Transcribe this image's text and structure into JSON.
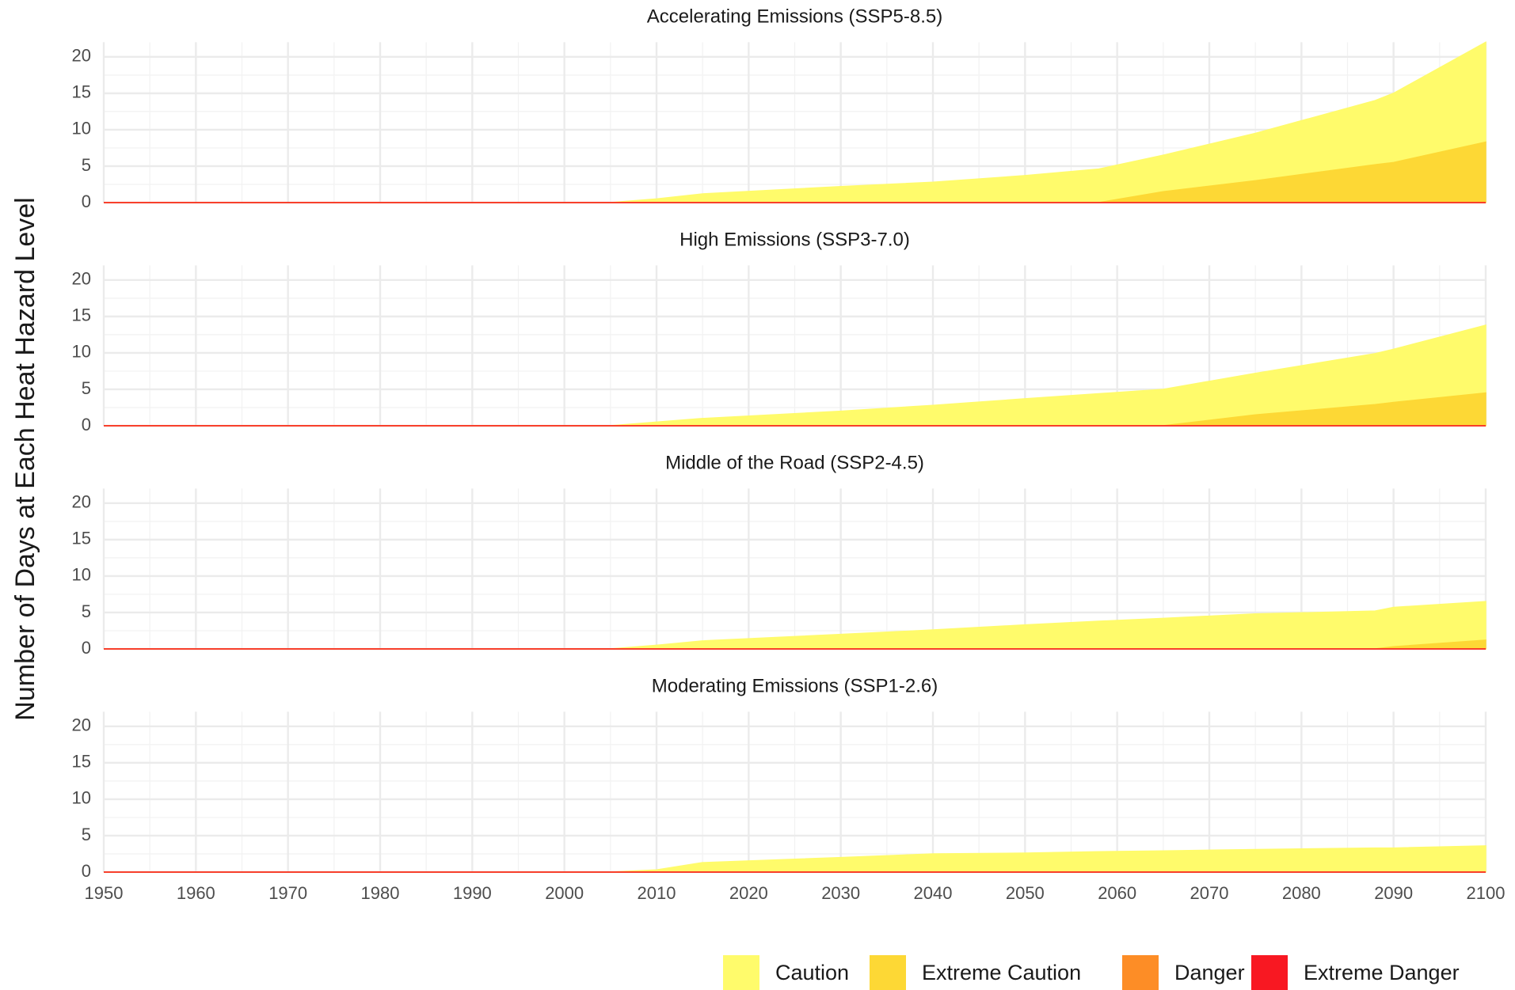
{
  "y_label": "Number of Days at Each Heat Hazard Level",
  "chart_data": [
    {
      "type": "area",
      "title": "Accelerating Emissions (SSP5-8.5)",
      "x": [
        1950,
        2005,
        2010,
        2015,
        2030,
        2040,
        2050,
        2058,
        2065,
        2075,
        2088,
        2090,
        2100
      ],
      "series": [
        {
          "name": "Caution",
          "color": "#fffb6b",
          "values": [
            0,
            0,
            0.5,
            1.2,
            2.2,
            2.8,
            3.7,
            4.6,
            5.0,
            6.5,
            8.8,
            9.5,
            13.7
          ]
        },
        {
          "name": "Extreme Caution",
          "color": "#fdd835",
          "values": [
            0,
            0,
            0,
            0,
            0,
            0,
            0,
            0,
            1.5,
            3.0,
            5.2,
            5.5,
            8.3
          ]
        },
        {
          "name": "Danger",
          "color": "#fd8d26",
          "values": [
            0,
            0,
            0,
            0,
            0,
            0,
            0,
            0,
            0,
            0,
            0,
            0,
            0
          ]
        },
        {
          "name": "Extreme Danger",
          "color": "#f81822",
          "values": [
            0,
            0,
            0,
            0,
            0,
            0,
            0,
            0,
            0,
            0,
            0,
            0,
            0
          ]
        }
      ],
      "xlim": [
        1950,
        2100
      ],
      "ylim": [
        0,
        22
      ],
      "xticks": [
        1950,
        1960,
        1970,
        1980,
        1990,
        2000,
        2010,
        2020,
        2030,
        2040,
        2050,
        2060,
        2070,
        2080,
        2090,
        2100
      ],
      "yticks": [
        0,
        5,
        10,
        15,
        20
      ],
      "grid": true
    },
    {
      "type": "area",
      "title": "High Emissions (SSP3-7.0)",
      "x": [
        1950,
        2005,
        2010,
        2015,
        2030,
        2040,
        2050,
        2058,
        2065,
        2075,
        2088,
        2090,
        2100
      ],
      "series": [
        {
          "name": "Caution",
          "color": "#fffb6b",
          "values": [
            0,
            0,
            0.5,
            1.0,
            2.0,
            2.8,
            3.7,
            4.4,
            5.0,
            5.7,
            7.0,
            7.3,
            9.3
          ]
        },
        {
          "name": "Extreme Caution",
          "color": "#fdd835",
          "values": [
            0,
            0,
            0,
            0,
            0,
            0,
            0,
            0,
            0,
            1.5,
            2.9,
            3.2,
            4.5
          ]
        },
        {
          "name": "Danger",
          "color": "#fd8d26",
          "values": [
            0,
            0,
            0,
            0,
            0,
            0,
            0,
            0,
            0,
            0,
            0,
            0,
            0
          ]
        },
        {
          "name": "Extreme Danger",
          "color": "#f81822",
          "values": [
            0,
            0,
            0,
            0,
            0,
            0,
            0,
            0,
            0,
            0,
            0,
            0,
            0
          ]
        }
      ],
      "xlim": [
        1950,
        2100
      ],
      "ylim": [
        0,
        22
      ],
      "xticks": [
        1950,
        1960,
        1970,
        1980,
        1990,
        2000,
        2010,
        2020,
        2030,
        2040,
        2050,
        2060,
        2070,
        2080,
        2090,
        2100
      ],
      "yticks": [
        0,
        5,
        10,
        15,
        20
      ],
      "grid": true
    },
    {
      "type": "area",
      "title": "Middle of the Road (SSP2-4.5)",
      "x": [
        1950,
        2005,
        2010,
        2015,
        2030,
        2040,
        2050,
        2058,
        2065,
        2075,
        2088,
        2090,
        2100
      ],
      "series": [
        {
          "name": "Caution",
          "color": "#fffb6b",
          "values": [
            0,
            0,
            0.5,
            1.1,
            2.0,
            2.6,
            3.3,
            3.8,
            4.2,
            4.8,
            5.2,
            5.4,
            5.3
          ]
        },
        {
          "name": "Extreme Caution",
          "color": "#fdd835",
          "values": [
            0,
            0,
            0,
            0,
            0,
            0,
            0,
            0,
            0,
            0,
            0,
            0.3,
            1.2
          ]
        },
        {
          "name": "Danger",
          "color": "#fd8d26",
          "values": [
            0,
            0,
            0,
            0,
            0,
            0,
            0,
            0,
            0,
            0,
            0,
            0,
            0
          ]
        },
        {
          "name": "Extreme Danger",
          "color": "#f81822",
          "values": [
            0,
            0,
            0,
            0,
            0,
            0,
            0,
            0,
            0,
            0,
            0,
            0,
            0
          ]
        }
      ],
      "xlim": [
        1950,
        2100
      ],
      "ylim": [
        0,
        22
      ],
      "xticks": [
        1950,
        1960,
        1970,
        1980,
        1990,
        2000,
        2010,
        2020,
        2030,
        2040,
        2050,
        2060,
        2070,
        2080,
        2090,
        2100
      ],
      "yticks": [
        0,
        5,
        10,
        15,
        20
      ],
      "grid": true
    },
    {
      "type": "area",
      "title": "Moderating Emissions (SSP1-2.6)",
      "x": [
        1950,
        2005,
        2010,
        2015,
        2030,
        2040,
        2050,
        2058,
        2065,
        2075,
        2088,
        2090,
        2100
      ],
      "series": [
        {
          "name": "Caution",
          "color": "#fffb6b",
          "values": [
            0,
            0,
            0.3,
            1.3,
            2.0,
            2.5,
            2.6,
            2.8,
            2.9,
            3.1,
            3.3,
            3.3,
            3.6
          ]
        },
        {
          "name": "Extreme Caution",
          "color": "#fdd835",
          "values": [
            0,
            0,
            0,
            0,
            0,
            0,
            0,
            0,
            0,
            0,
            0,
            0,
            0
          ]
        },
        {
          "name": "Danger",
          "color": "#fd8d26",
          "values": [
            0,
            0,
            0,
            0,
            0,
            0,
            0,
            0,
            0,
            0,
            0,
            0,
            0
          ]
        },
        {
          "name": "Extreme Danger",
          "color": "#f81822",
          "values": [
            0,
            0,
            0,
            0,
            0,
            0,
            0,
            0,
            0,
            0,
            0,
            0,
            0
          ]
        }
      ],
      "xlim": [
        1950,
        2100
      ],
      "ylim": [
        0,
        22
      ],
      "xticks": [
        1950,
        1960,
        1970,
        1980,
        1990,
        2000,
        2010,
        2020,
        2030,
        2040,
        2050,
        2060,
        2070,
        2080,
        2090,
        2100
      ],
      "yticks": [
        0,
        5,
        10,
        15,
        20
      ],
      "grid": true
    }
  ]
}
